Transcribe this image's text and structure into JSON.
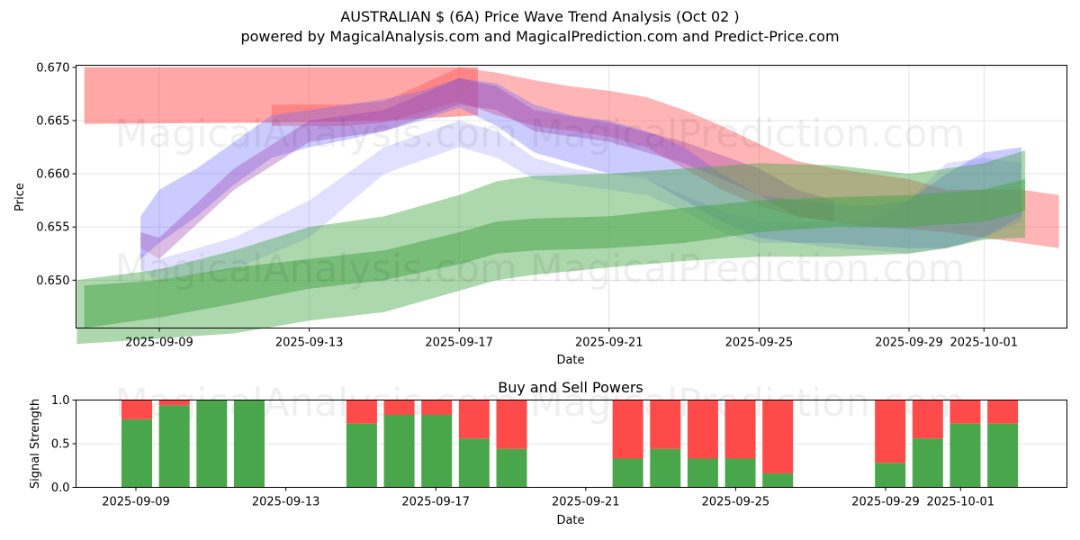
{
  "header": {
    "title": "AUSTRALIAN $ (6A) Price Wave Trend Analysis (Oct 02 )",
    "subtitle": "powered by MagicalAnalysis.com and MagicalPrediction.com and Predict-Price.com"
  },
  "watermarks": [
    "MagicalAnalysis.com",
    "MagicalPrediction.com"
  ],
  "colors": {
    "buy": "#4aa64a",
    "sell": "#ff4a4a",
    "band_red": "#ff6b6b",
    "band_blue": "#6b6bff",
    "band_green": "#4aa64a",
    "grid": "#dcdcdc"
  },
  "chart_data": [
    {
      "type": "area",
      "title": "AUSTRALIAN $ (6A) Price Wave Trend Analysis (Oct 02 )",
      "xlabel": "Date",
      "ylabel": "Price",
      "ylim": [
        0.6455,
        0.6702
      ],
      "xlim": [
        "2025-09-06T18:00",
        "2025-10-03T06:00"
      ],
      "grid": true,
      "yticks": [
        "0.650",
        "0.655",
        "0.660",
        "0.665",
        "0.670"
      ],
      "ytick_values": [
        0.65,
        0.655,
        0.66,
        0.665,
        0.67
      ],
      "xticks": [
        "2025-09-09",
        "2025-09-13",
        "2025-09-17",
        "2025-09-21",
        "2025-09-25",
        "2025-09-29",
        "2025-10-01"
      ],
      "xtick_days": [
        2,
        6,
        10,
        14,
        18,
        22,
        24
      ],
      "day0": "2025-09-07",
      "series": [
        {
          "name": "red-band-flat",
          "color": "red",
          "opacity": 0.55,
          "x": [
            0,
            0.1,
            5,
            8,
            10.5
          ],
          "upper": [
            0.67,
            0.67,
            0.67,
            0.67,
            0.67
          ],
          "lower": [
            0.6647,
            0.6647,
            0.6648,
            0.665,
            0.6655
          ]
        },
        {
          "name": "red-band-wave",
          "color": "red",
          "opacity": 0.45,
          "x": [
            5,
            7,
            8,
            10,
            11,
            12,
            13,
            14,
            15,
            16,
            17,
            18,
            19,
            20,
            21,
            22,
            23,
            24,
            25,
            26
          ],
          "upper": [
            0.6665,
            0.6665,
            0.6668,
            0.67,
            0.6695,
            0.6688,
            0.6682,
            0.6678,
            0.6672,
            0.666,
            0.6645,
            0.6628,
            0.6612,
            0.6605,
            0.66,
            0.6595,
            0.6585,
            0.6585,
            0.6585,
            0.658
          ],
          "lower": [
            0.6645,
            0.6645,
            0.6648,
            0.6668,
            0.6655,
            0.6645,
            0.664,
            0.6635,
            0.6625,
            0.6605,
            0.6585,
            0.657,
            0.656,
            0.6555,
            0.655,
            0.6548,
            0.6545,
            0.654,
            0.6535,
            0.653
          ]
        },
        {
          "name": "blue-band-main",
          "color": "blue",
          "opacity": 0.35,
          "x": [
            1.5,
            2,
            3,
            4,
            5,
            6,
            7,
            8,
            9,
            10,
            11,
            12,
            13,
            14,
            15,
            16,
            17,
            18,
            19,
            20,
            21,
            22,
            23,
            24,
            25
          ],
          "upper": [
            0.656,
            0.6585,
            0.6605,
            0.663,
            0.6655,
            0.666,
            0.6665,
            0.667,
            0.6678,
            0.669,
            0.6685,
            0.6665,
            0.6655,
            0.665,
            0.664,
            0.6625,
            0.66,
            0.658,
            0.6575,
            0.6572,
            0.657,
            0.6575,
            0.66,
            0.662,
            0.6625
          ],
          "lower": [
            0.652,
            0.6535,
            0.656,
            0.659,
            0.6615,
            0.6625,
            0.6632,
            0.664,
            0.665,
            0.6662,
            0.6645,
            0.662,
            0.661,
            0.66,
            0.6595,
            0.6575,
            0.6555,
            0.654,
            0.6535,
            0.6535,
            0.6532,
            0.653,
            0.653,
            0.654,
            0.656
          ]
        },
        {
          "name": "blue-band-lower",
          "color": "blue",
          "opacity": 0.2,
          "x": [
            1.5,
            2,
            4,
            6,
            8,
            10,
            11,
            12,
            13,
            14,
            15,
            16,
            17,
            18,
            19,
            20,
            21,
            22,
            23,
            24,
            25
          ],
          "upper": [
            0.653,
            0.652,
            0.654,
            0.6575,
            0.6625,
            0.665,
            0.664,
            0.6615,
            0.6605,
            0.66,
            0.6595,
            0.658,
            0.6565,
            0.6555,
            0.6555,
            0.6555,
            0.6555,
            0.6575,
            0.661,
            0.6615,
            0.661
          ],
          "lower": [
            0.651,
            0.65,
            0.651,
            0.654,
            0.66,
            0.6625,
            0.6615,
            0.6595,
            0.659,
            0.6585,
            0.658,
            0.6565,
            0.6545,
            0.6535,
            0.6535,
            0.653,
            0.6528,
            0.6525,
            0.653,
            0.654,
            0.6555
          ]
        },
        {
          "name": "purple-core",
          "color": "purple",
          "opacity": 0.35,
          "x": [
            1.5,
            2,
            4,
            6,
            8,
            10,
            11,
            12,
            14,
            16,
            18,
            19,
            20
          ],
          "upper": [
            0.6545,
            0.654,
            0.6605,
            0.665,
            0.666,
            0.669,
            0.6682,
            0.666,
            0.6648,
            0.663,
            0.6605,
            0.6585,
            0.6575
          ],
          "lower": [
            0.653,
            0.652,
            0.6585,
            0.663,
            0.664,
            0.6665,
            0.666,
            0.664,
            0.663,
            0.661,
            0.658,
            0.656,
            0.6555
          ]
        },
        {
          "name": "green-band-outer",
          "color": "green",
          "opacity": 0.45,
          "x": [
            -0.2,
            2,
            4,
            6,
            8,
            10,
            11,
            12,
            14,
            16,
            18,
            20,
            22,
            23,
            24,
            25.1
          ],
          "upper": [
            0.65,
            0.651,
            0.6528,
            0.655,
            0.656,
            0.658,
            0.6593,
            0.6598,
            0.66,
            0.6605,
            0.661,
            0.6608,
            0.66,
            0.6605,
            0.661,
            0.6622
          ],
          "lower": [
            0.644,
            0.6445,
            0.645,
            0.6462,
            0.647,
            0.649,
            0.65,
            0.6505,
            0.6512,
            0.6518,
            0.6522,
            0.6522,
            0.6525,
            0.653,
            0.6538,
            0.654
          ]
        },
        {
          "name": "green-band-inner",
          "color": "green",
          "opacity": 0.55,
          "x": [
            0,
            2,
            4,
            6,
            8,
            10,
            11,
            12,
            14,
            16,
            18,
            20,
            22,
            24,
            25.1
          ],
          "upper": [
            0.6495,
            0.65,
            0.6512,
            0.652,
            0.6528,
            0.6545,
            0.6555,
            0.6558,
            0.656,
            0.6568,
            0.6575,
            0.6578,
            0.658,
            0.6585,
            0.6595
          ],
          "lower": [
            0.6455,
            0.6465,
            0.6478,
            0.6492,
            0.65,
            0.6515,
            0.6525,
            0.6528,
            0.653,
            0.6535,
            0.6545,
            0.655,
            0.655,
            0.6555,
            0.6565
          ]
        }
      ]
    },
    {
      "type": "bar",
      "title": "Buy and Sell Powers",
      "xlabel": "Date",
      "ylabel": "Signal Strength",
      "ylim": [
        0,
        1
      ],
      "yticks": [
        "0.0",
        "0.5",
        "1.0"
      ],
      "ytick_values": [
        0,
        0.5,
        1.0
      ],
      "grid": true,
      "xticks": [
        "2025-09-09",
        "2025-09-13",
        "2025-09-17",
        "2025-09-21",
        "2025-09-25",
        "2025-09-29",
        "2025-10-01"
      ],
      "xtick_days": [
        2,
        6,
        10,
        14,
        18,
        22,
        24
      ],
      "day0": "2025-09-07",
      "legend": "none",
      "bar_days": [
        1.4,
        2.4,
        3.4,
        4.4,
        7.4,
        8.4,
        9.4,
        10.4,
        11.4,
        14.5,
        15.5,
        16.5,
        17.5,
        18.5,
        21.5,
        22.5,
        23.5,
        24.5
      ],
      "series": [
        {
          "name": "Buy",
          "values": [
            0.78,
            0.94,
            1.0,
            1.0,
            0.73,
            0.83,
            0.83,
            0.56,
            0.44,
            0.33,
            0.44,
            0.33,
            0.33,
            0.16,
            0.28,
            0.56,
            0.73,
            0.73
          ]
        },
        {
          "name": "Sell",
          "values": [
            0.22,
            0.06,
            0.0,
            0.0,
            0.27,
            0.17,
            0.17,
            0.44,
            0.56,
            0.67,
            0.56,
            0.67,
            0.67,
            0.84,
            0.72,
            0.44,
            0.27,
            0.27
          ]
        }
      ]
    }
  ]
}
